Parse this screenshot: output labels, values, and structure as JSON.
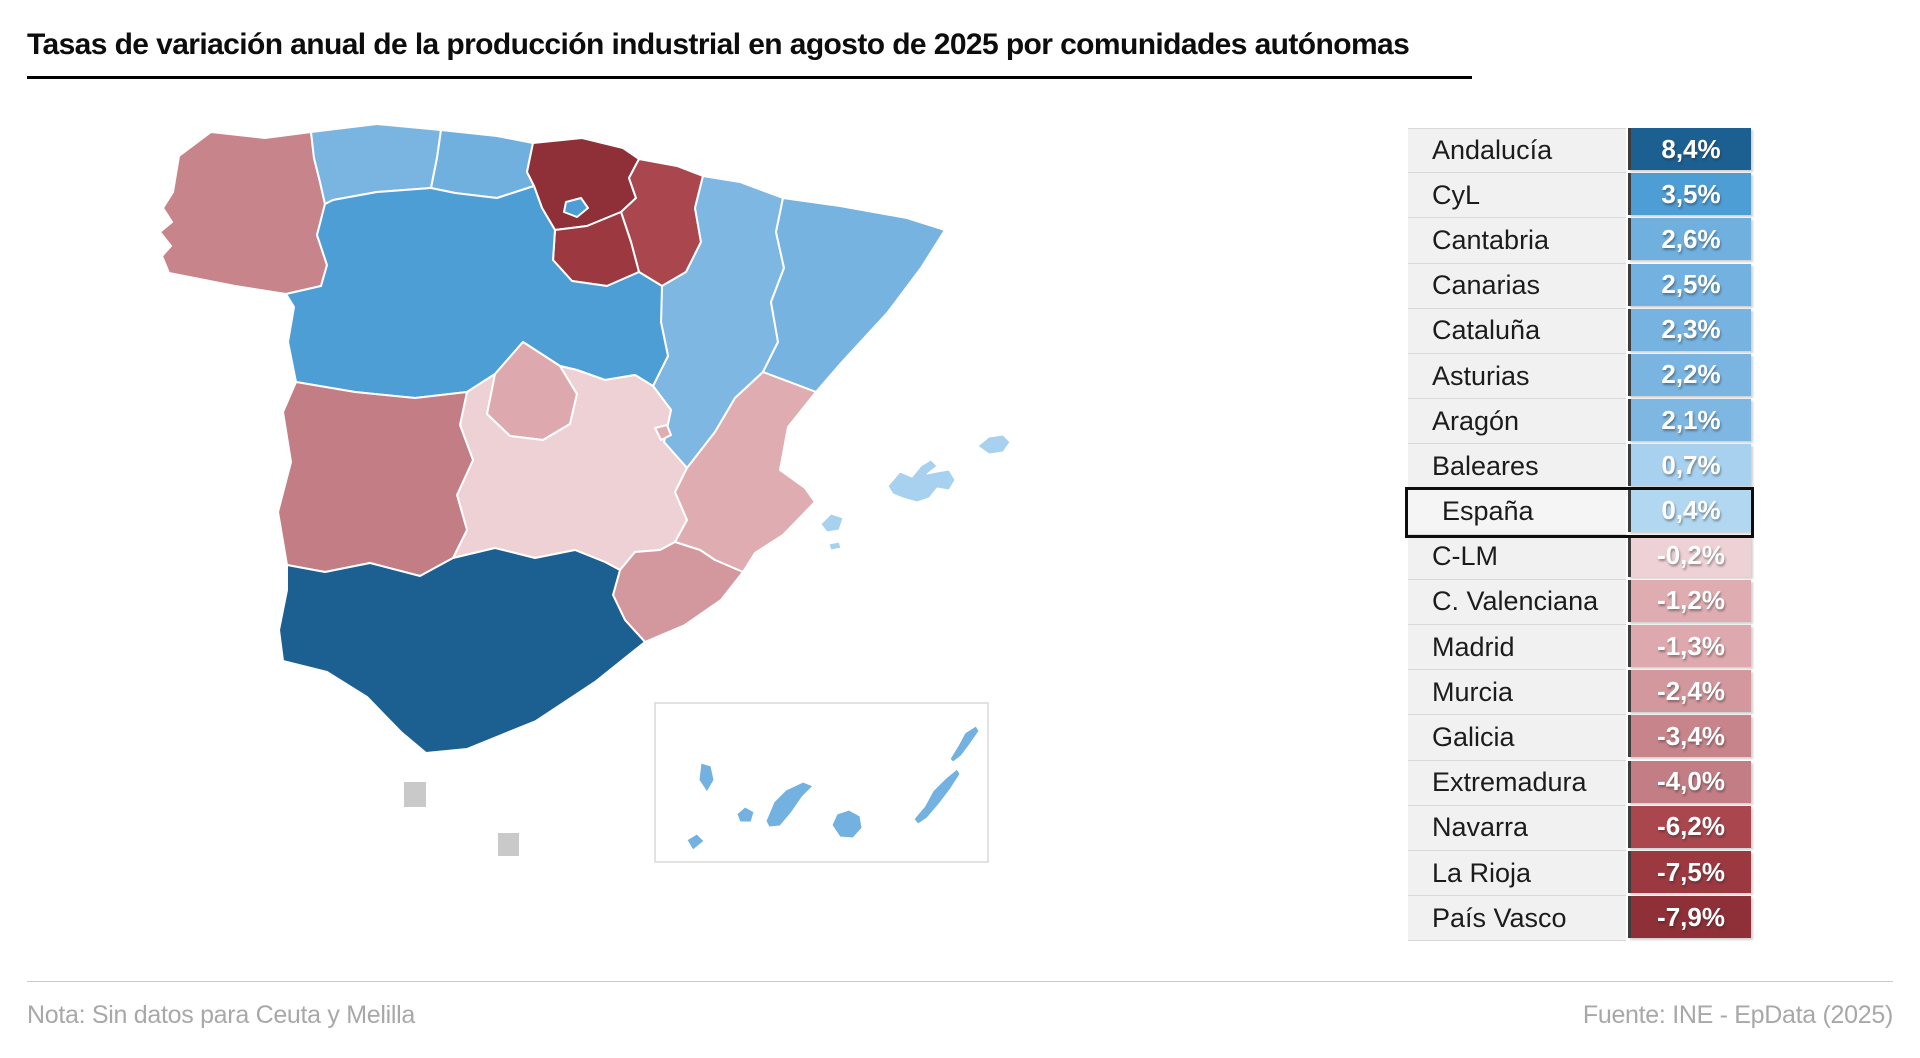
{
  "title": "Tasas de variación anual de la producción industrial en agosto de 2025 por comunidades autónomas",
  "footer": {
    "note": "Nota: Sin datos para Ceuta y Melilla",
    "source": "Fuente: INE - EpData (2025)"
  },
  "chart_data": {
    "type": "choropleth",
    "title": "Tasas de variación anual de la producción industrial en agosto de 2025 por comunidades autónomas",
    "unit": "%",
    "period": "agosto de 2025",
    "legend_position": "right",
    "value_range_shown": [
      -7.9,
      8.4
    ],
    "regions": [
      {
        "id": "andalucia",
        "label": "Andalucía",
        "value": 8.4,
        "value_label": "8,4%",
        "color": "#1c6092"
      },
      {
        "id": "cyl",
        "label": "CyL",
        "value": 3.5,
        "value_label": "3,5%",
        "color": "#4e9ed6"
      },
      {
        "id": "cantabria",
        "label": "Cantabria",
        "value": 2.6,
        "value_label": "2,6%",
        "color": "#6fb0df"
      },
      {
        "id": "canarias",
        "label": "Canarias",
        "value": 2.5,
        "value_label": "2,5%",
        "color": "#72b1e0"
      },
      {
        "id": "cataluna",
        "label": "Cataluña",
        "value": 2.3,
        "value_label": "2,3%",
        "color": "#77b3e0"
      },
      {
        "id": "asturias",
        "label": "Asturias",
        "value": 2.2,
        "value_label": "2,2%",
        "color": "#7ab5e1"
      },
      {
        "id": "aragon",
        "label": "Aragón",
        "value": 2.1,
        "value_label": "2,1%",
        "color": "#7eb7e2"
      },
      {
        "id": "baleares",
        "label": "Baleares",
        "value": 0.7,
        "value_label": "0,7%",
        "color": "#a7d1ee"
      },
      {
        "id": "espana",
        "label": "España",
        "value": 0.4,
        "value_label": "0,4%",
        "color": "#b2d7f1",
        "highlight": true
      },
      {
        "id": "clm",
        "label": "C-LM",
        "value": -0.2,
        "value_label": "-0,2%",
        "color": "#edd1d4"
      },
      {
        "id": "valenciana",
        "label": "C. Valenciana",
        "value": -1.2,
        "value_label": "-1,2%",
        "color": "#dfadb1"
      },
      {
        "id": "madrid",
        "label": "Madrid",
        "value": -1.3,
        "value_label": "-1,3%",
        "color": "#dea9ae"
      },
      {
        "id": "murcia",
        "label": "Murcia",
        "value": -2.4,
        "value_label": "-2,4%",
        "color": "#d3989d"
      },
      {
        "id": "galicia",
        "label": "Galicia",
        "value": -3.4,
        "value_label": "-3,4%",
        "color": "#c7848a"
      },
      {
        "id": "extremadura",
        "label": "Extremadura",
        "value": -4.0,
        "value_label": "-4,0%",
        "color": "#c37d84"
      },
      {
        "id": "navarra",
        "label": "Navarra",
        "value": -6.2,
        "value_label": "-6,2%",
        "color": "#aa474e"
      },
      {
        "id": "larioja",
        "label": "La Rioja",
        "value": -7.5,
        "value_label": "-7,5%",
        "color": "#9c3840"
      },
      {
        "id": "paisvasco",
        "label": "País Vasco",
        "value": -7.9,
        "value_label": "-7,9%",
        "color": "#8f2f37"
      }
    ],
    "no_data": {
      "label": "Sin datos",
      "regions": [
        "Ceuta",
        "Melilla"
      ],
      "color": "#c9c9c9"
    }
  }
}
